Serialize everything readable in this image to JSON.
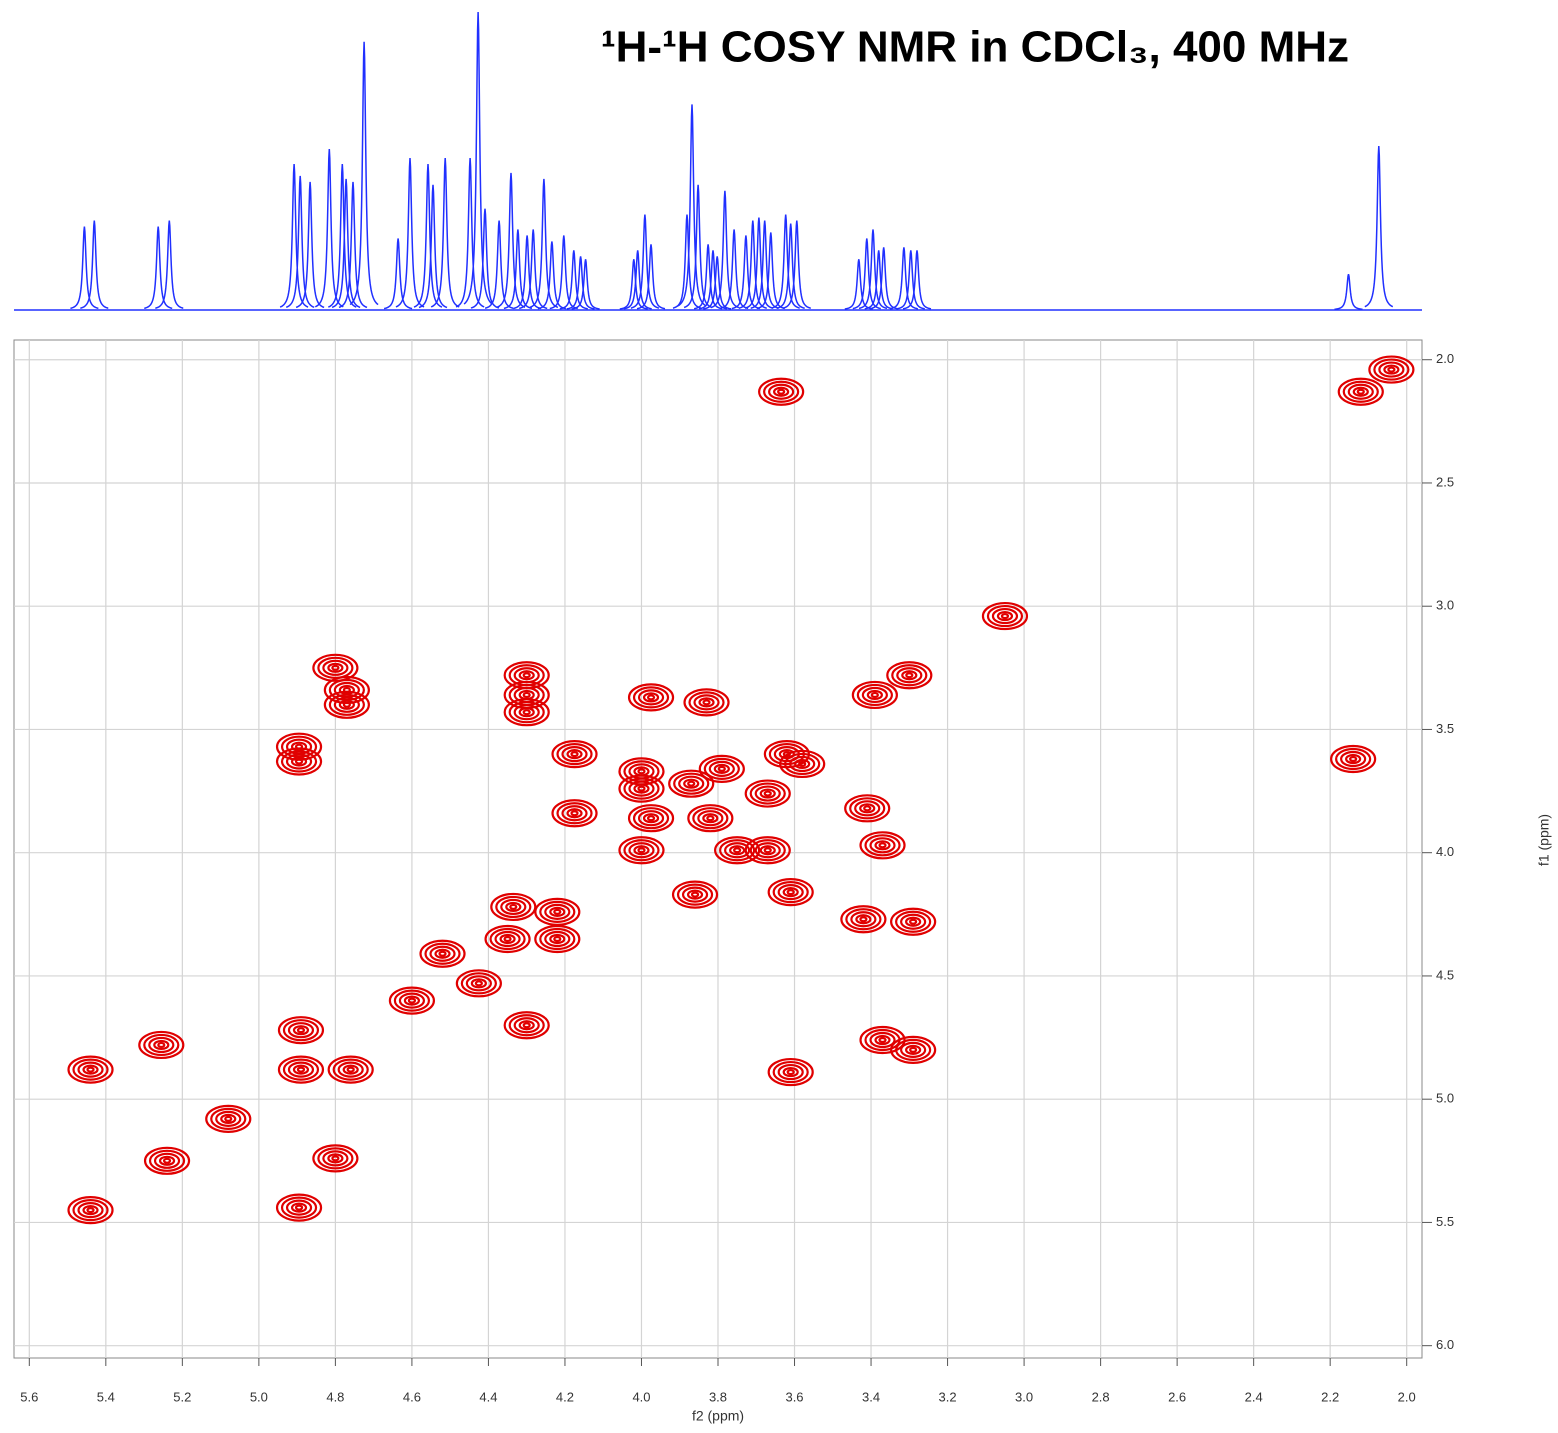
{
  "chart_data": {
    "type": "scatter",
    "title": "¹H-¹H COSY NMR in CDCl₃, 400 MHz",
    "xlabel": "f2 (ppm)",
    "ylabel": "f1 (ppm)",
    "xlim": [
      5.64,
      1.96
    ],
    "ylim": [
      1.92,
      6.05
    ],
    "xticks": [
      5.6,
      5.4,
      5.2,
      {
        "value": 5,
        "label": "5.0"
      },
      4.8,
      4.6,
      4.4,
      4.2,
      {
        "value": 4,
        "label": "4.0"
      },
      3.8,
      3.6,
      3.4,
      3.2,
      {
        "value": 3,
        "label": "3.0"
      },
      2.8,
      2.6,
      2.4,
      2.2,
      {
        "value": 2,
        "label": "2.0"
      }
    ],
    "yticks": [
      {
        "value": 2,
        "label": "2.0"
      },
      2.5,
      {
        "value": 3,
        "label": "3.0"
      },
      3.5,
      {
        "value": 4,
        "label": "4.0"
      },
      4.5,
      {
        "value": 5,
        "label": "5.0"
      },
      5.5,
      {
        "value": 6,
        "label": "6.0"
      }
    ],
    "grid": true,
    "color": "#e00000",
    "x": [
      2.04,
      2.12,
      3.635,
      3.05,
      4.8,
      4.77,
      4.77,
      4.3,
      4.3,
      4.3,
      3.975,
      3.83,
      4.895,
      4.895,
      4.175,
      4.175,
      4.0,
      3.39,
      3.3,
      3.41,
      3.37,
      3.42,
      3.29,
      3.61,
      3.86,
      3.37,
      3.29,
      3.61,
      4.3,
      5.44,
      5.255,
      5.24,
      5.44,
      4.895,
      4.8,
      4.335,
      4.22,
      4.22,
      4.35,
      4.425,
      4.52,
      4.6,
      4.89,
      4.76,
      4.89,
      4.0,
      4.0,
      3.87,
      3.79,
      3.75,
      3.67,
      3.67,
      3.62,
      3.58,
      3.82,
      3.975,
      2.14,
      5.08
    ],
    "y": [
      2.04,
      2.13,
      2.13,
      3.04,
      3.25,
      3.34,
      3.4,
      3.28,
      3.36,
      3.43,
      3.37,
      3.39,
      3.57,
      3.63,
      3.6,
      3.84,
      3.67,
      3.36,
      3.28,
      3.82,
      3.97,
      4.27,
      4.28,
      4.16,
      4.17,
      4.76,
      4.8,
      4.89,
      4.7,
      4.88,
      4.78,
      5.25,
      5.45,
      5.44,
      5.24,
      4.22,
      4.35,
      4.24,
      4.35,
      4.53,
      4.41,
      4.6,
      4.72,
      4.88,
      4.88,
      3.74,
      3.99,
      3.72,
      3.66,
      3.99,
      3.99,
      3.76,
      3.6,
      3.64,
      3.86,
      3.86,
      3.62,
      5.08
    ],
    "projection": {
      "color": "#2030ff",
      "x": [
        5.456,
        5.43,
        5.263,
        5.234,
        4.908,
        4.892,
        4.866,
        4.816,
        4.782,
        4.772,
        4.754,
        4.725,
        4.636,
        4.605,
        4.558,
        4.545,
        4.513,
        4.448,
        4.427,
        4.409,
        4.372,
        4.341,
        4.323,
        4.299,
        4.283,
        4.255,
        4.234,
        4.203,
        4.177,
        4.159,
        4.146,
        4.02,
        4.01,
        3.991,
        3.975,
        3.881,
        3.868,
        3.852,
        3.826,
        3.813,
        3.802,
        3.782,
        3.758,
        3.727,
        3.709,
        3.693,
        3.678,
        3.662,
        3.623,
        3.61,
        3.594,
        3.432,
        3.411,
        3.395,
        3.38,
        3.367,
        3.314,
        3.296,
        3.28,
        2.152,
        2.073
      ],
      "values": [
        0.28,
        0.3,
        0.28,
        0.3,
        0.49,
        0.45,
        0.43,
        0.54,
        0.49,
        0.44,
        0.43,
        0.9,
        0.24,
        0.51,
        0.49,
        0.42,
        0.51,
        0.51,
        1.0,
        0.34,
        0.3,
        0.46,
        0.27,
        0.25,
        0.27,
        0.44,
        0.23,
        0.25,
        0.2,
        0.18,
        0.17,
        0.17,
        0.2,
        0.32,
        0.22,
        0.32,
        0.69,
        0.42,
        0.22,
        0.2,
        0.18,
        0.4,
        0.27,
        0.25,
        0.3,
        0.31,
        0.3,
        0.26,
        0.32,
        0.29,
        0.3,
        0.17,
        0.24,
        0.27,
        0.2,
        0.21,
        0.21,
        0.2,
        0.2,
        0.12,
        0.55
      ]
    }
  }
}
